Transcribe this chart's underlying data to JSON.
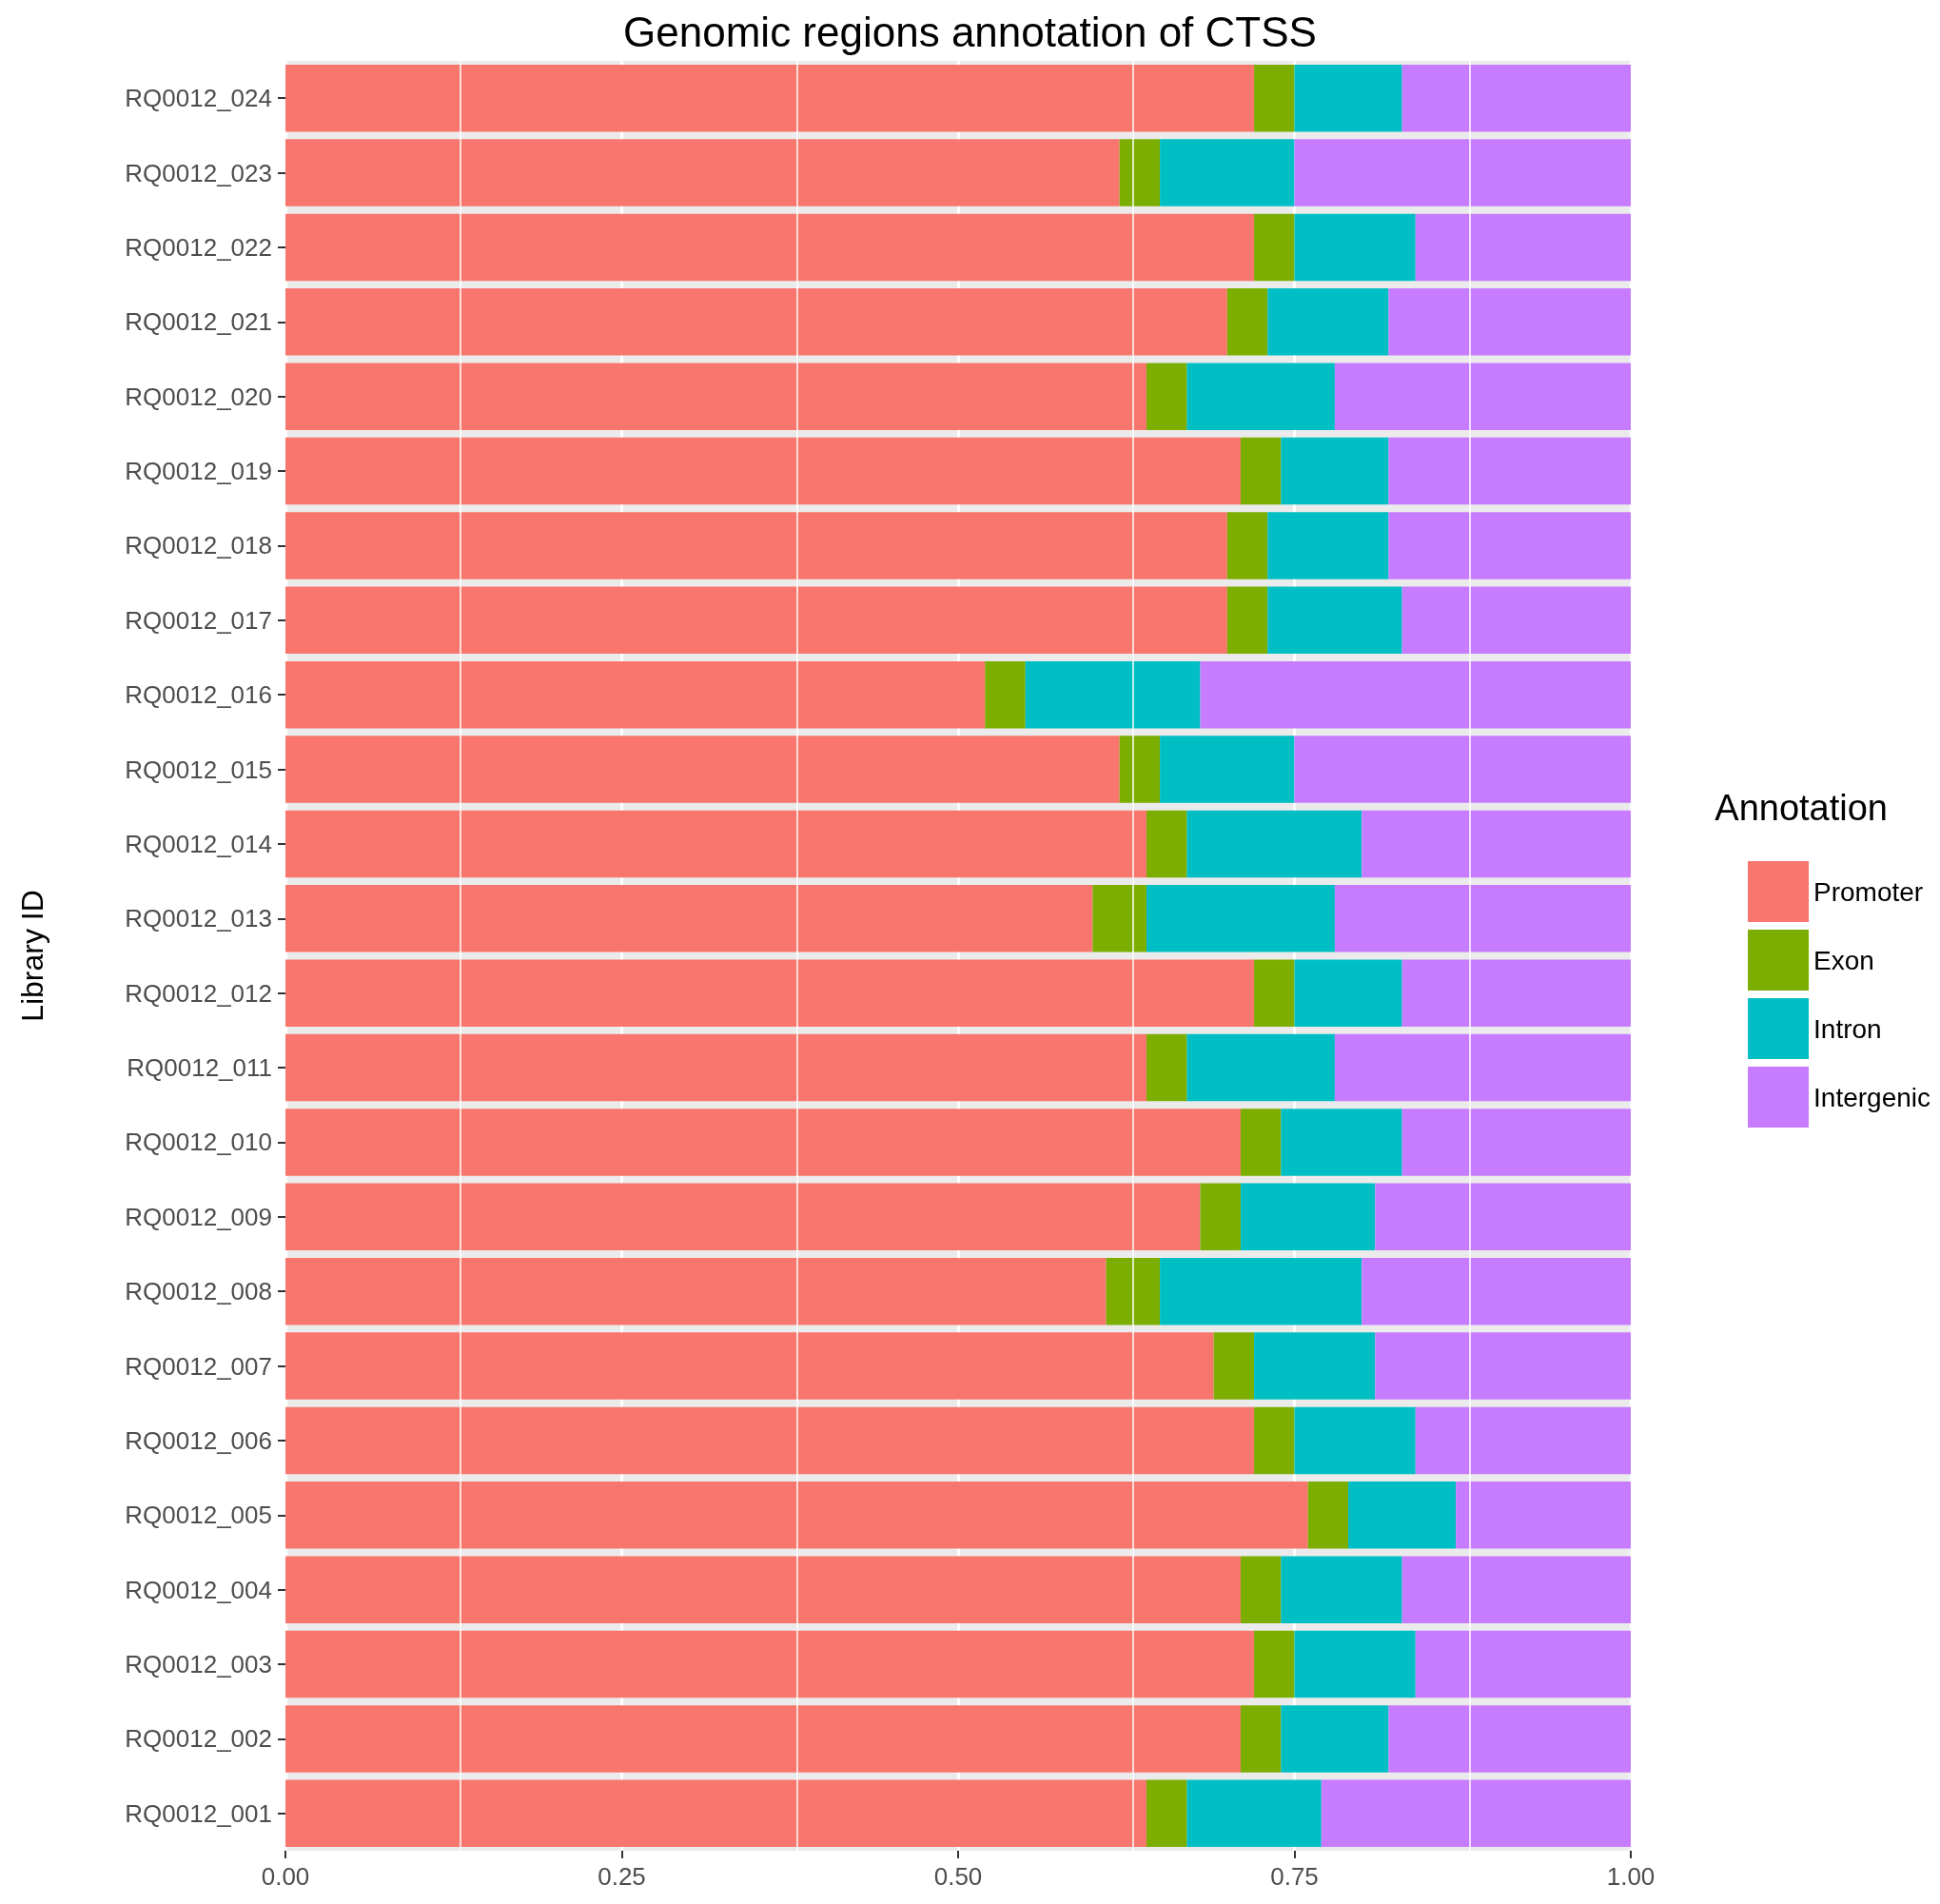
{
  "chart_data": {
    "type": "bar",
    "orientation": "horizontal",
    "stacked": true,
    "title": "Genomic regions annotation of CTSS",
    "ylabel": "Library ID",
    "legend_title": "Annotation",
    "legend": "right",
    "grid": "x",
    "categories": [
      "RQ0012_024",
      "RQ0012_023",
      "RQ0012_022",
      "RQ0012_021",
      "RQ0012_020",
      "RQ0012_019",
      "RQ0012_018",
      "RQ0012_017",
      "RQ0012_016",
      "RQ0012_015",
      "RQ0012_014",
      "RQ0012_013",
      "RQ0012_012",
      "RQ0012_011",
      "RQ0012_010",
      "RQ0012_009",
      "RQ0012_008",
      "RQ0012_007",
      "RQ0012_006",
      "RQ0012_005",
      "RQ0012_004",
      "RQ0012_003",
      "RQ0012_002",
      "RQ0012_001"
    ],
    "xlim": [
      0,
      1
    ],
    "xticks": [
      {
        "value": 0,
        "label": "0.00"
      },
      {
        "value": 0.25,
        "label": "0.25"
      },
      {
        "value": 0.5,
        "label": "0.50"
      },
      {
        "value": 0.75,
        "label": "0.75"
      },
      {
        "value": 1,
        "label": "1.00"
      }
    ],
    "series": [
      {
        "name": "Promoter",
        "color": "#f8766d",
        "values": [
          0.72,
          0.62,
          0.72,
          0.7,
          0.64,
          0.71,
          0.7,
          0.7,
          0.52,
          0.62,
          0.64,
          0.6,
          0.72,
          0.64,
          0.71,
          0.68,
          0.61,
          0.69,
          0.72,
          0.76,
          0.71,
          0.72,
          0.71,
          0.64
        ]
      },
      {
        "name": "Exon",
        "color": "#7cae00",
        "values": [
          0.03,
          0.03,
          0.03,
          0.03,
          0.03,
          0.03,
          0.03,
          0.03,
          0.03,
          0.03,
          0.03,
          0.04,
          0.03,
          0.03,
          0.03,
          0.03,
          0.04,
          0.03,
          0.03,
          0.03,
          0.03,
          0.03,
          0.03,
          0.03
        ]
      },
      {
        "name": "Intron",
        "color": "#00bfc4",
        "values": [
          0.08,
          0.1,
          0.09,
          0.09,
          0.11,
          0.08,
          0.09,
          0.1,
          0.13,
          0.1,
          0.13,
          0.14,
          0.08,
          0.11,
          0.09,
          0.1,
          0.15,
          0.09,
          0.09,
          0.08,
          0.09,
          0.09,
          0.08,
          0.1
        ]
      },
      {
        "name": "Intergenic",
        "color": "#c77cff",
        "values": [
          0.17,
          0.25,
          0.16,
          0.18,
          0.22,
          0.18,
          0.18,
          0.17,
          0.32,
          0.25,
          0.2,
          0.22,
          0.17,
          0.22,
          0.17,
          0.19,
          0.2,
          0.19,
          0.16,
          0.13,
          0.17,
          0.16,
          0.18,
          0.23
        ]
      }
    ]
  }
}
